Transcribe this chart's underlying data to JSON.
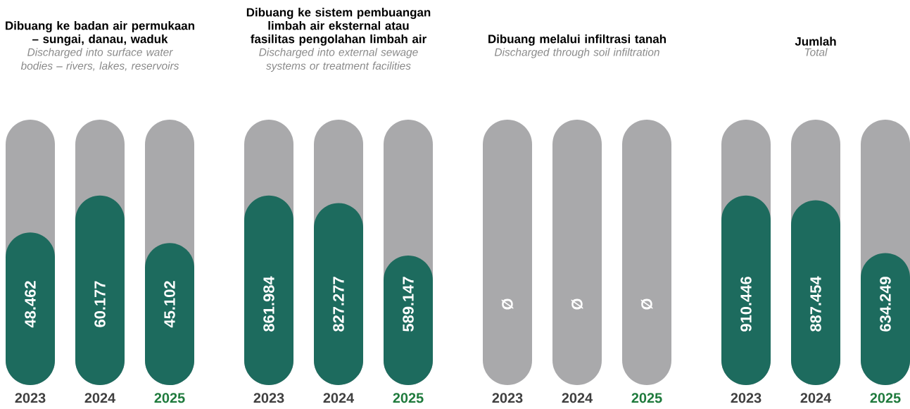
{
  "chart_data": [
    {
      "type": "bar",
      "title": "Dibuang ke badan air permukaan – sungai, danau, waduk",
      "subtitle": "Discharged into surface water bodies – rivers, lakes, reservoirs",
      "categories": [
        "2023",
        "2024",
        "2025"
      ],
      "values": [
        48462,
        60177,
        45102
      ],
      "value_labels": [
        "48.462",
        "60.177",
        "45.102"
      ],
      "color": "#1d6b5e"
    },
    {
      "type": "bar",
      "title": "Dibuang ke sistem pembuangan limbah air eksternal atau fasilitas pengolahan limbah air",
      "subtitle": "Discharged into external sewage systems or treatment facilities",
      "categories": [
        "2023",
        "2024",
        "2025"
      ],
      "values": [
        861984,
        827277,
        589147
      ],
      "value_labels": [
        "861.984",
        "827.277",
        "589.147"
      ],
      "color": "#1d6b5e"
    },
    {
      "type": "other",
      "title": "Dibuang melalui infiltrasi tanah",
      "subtitle": "Discharged through soil infiltration",
      "categories": [
        "2023",
        "2024",
        "2025"
      ],
      "values": [
        null,
        null,
        null
      ],
      "value_labels": [
        "Ø",
        "Ø",
        "Ø"
      ],
      "color": "#1d6b5e"
    },
    {
      "type": "bar",
      "title": "Jumlah",
      "subtitle": "Total",
      "categories": [
        "2023",
        "2024",
        "2025"
      ],
      "values": [
        910446,
        887454,
        634249
      ],
      "value_labels": [
        "910.446",
        "887.454",
        "634.249"
      ],
      "color": "#1d6b5e"
    }
  ]
}
